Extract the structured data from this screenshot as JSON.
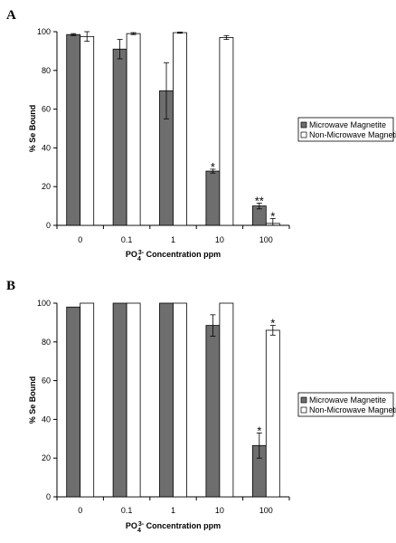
{
  "chart_data": [
    {
      "panel": "A",
      "type": "bar",
      "xlabel_main": "PO",
      "xlabel_sub": "4",
      "xlabel_sup": "3-",
      "xlabel_rest": " Concentration ppm",
      "ylabel": "% Se Bound",
      "ylim": [
        0,
        100
      ],
      "yticks": [
        0,
        20,
        40,
        60,
        80,
        100
      ],
      "categories": [
        "0",
        "0.1",
        "1",
        "10",
        "100"
      ],
      "grid": false,
      "legend_placement": "right",
      "series": [
        {
          "name": "Microwave Magnetite",
          "color": "#6e6e6e",
          "values": [
            98.5,
            91,
            69.5,
            28,
            10
          ],
          "errors": [
            0.5,
            5,
            14.5,
            1,
            1.5
          ],
          "stars": [
            "",
            "",
            "",
            "*",
            "**"
          ]
        },
        {
          "name": "Non-Microwave Magnetite",
          "color": "#ffffff",
          "values": [
            97.5,
            99,
            99.5,
            97,
            1
          ],
          "errors": [
            2.5,
            0.5,
            0.3,
            1,
            2.5
          ],
          "stars": [
            "",
            "",
            "",
            "",
            "*"
          ]
        }
      ]
    },
    {
      "panel": "B",
      "type": "bar",
      "xlabel_main": "PO",
      "xlabel_sub": "4",
      "xlabel_sup": "3-",
      "xlabel_rest": " Concentration ppm",
      "ylabel": "% Se Bound",
      "ylim": [
        0,
        100
      ],
      "yticks": [
        0,
        20,
        40,
        60,
        80,
        100
      ],
      "categories": [
        "0",
        "0.1",
        "1",
        "10",
        "100"
      ],
      "grid": false,
      "legend_placement": "right",
      "series": [
        {
          "name": "Microwave Magnetite",
          "color": "#6e6e6e",
          "values": [
            98,
            100,
            100,
            88.5,
            26.5
          ],
          "errors": [
            0,
            0,
            0,
            5.5,
            6.5
          ],
          "stars": [
            "",
            "",
            "",
            "",
            "*"
          ]
        },
        {
          "name": "Non-Microwave Magnetite",
          "color": "#ffffff",
          "values": [
            100,
            100,
            100,
            100,
            86
          ],
          "errors": [
            0,
            0,
            0,
            0,
            2.5
          ],
          "stars": [
            "",
            "",
            "",
            "",
            "*"
          ]
        }
      ]
    }
  ]
}
